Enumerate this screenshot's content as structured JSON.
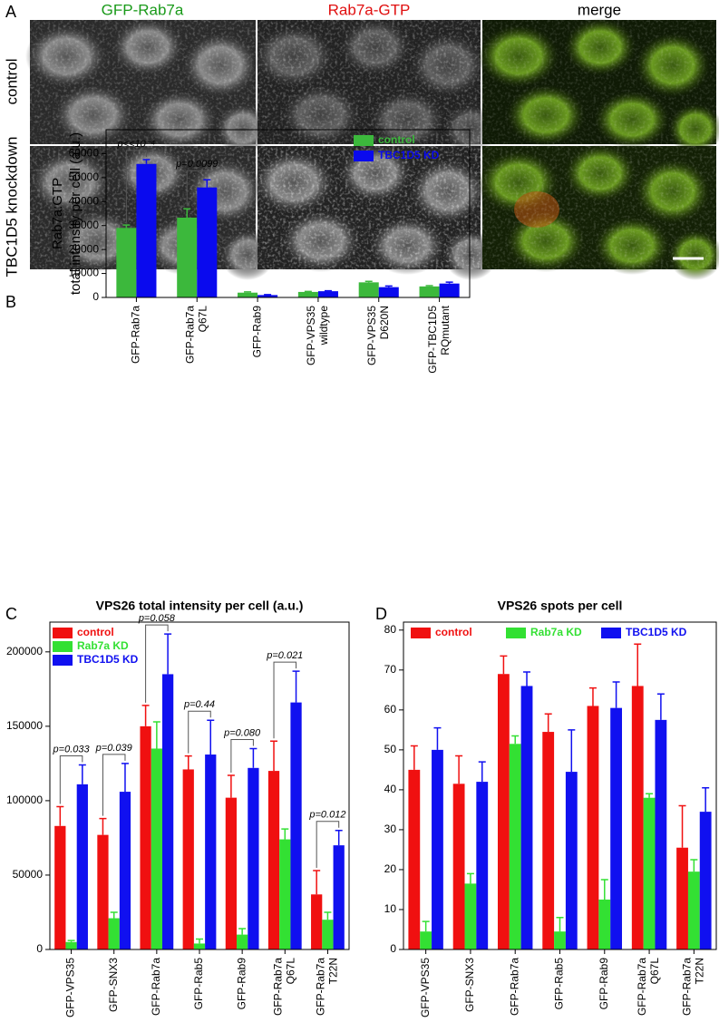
{
  "panel_a": {
    "letter": "A",
    "columns": [
      "GFP-Rab7a",
      "Rab7a-GTP",
      "merge"
    ],
    "rows": [
      "control",
      "TBC1D5 knockdown"
    ]
  },
  "chart_data": [
    {
      "type": "bar",
      "panel": "B",
      "ylabel": [
        "Rab7a:GTP",
        "total intensity per cell (a.u.)"
      ],
      "categories": [
        [
          "GFP-Rab7a"
        ],
        [
          "GFP-Rab7a",
          "Q67L"
        ],
        [
          "GFP-Rab9"
        ],
        [
          "GFP-VPS35",
          "wildtype"
        ],
        [
          "GFP-VPS35",
          "D620N"
        ],
        [
          "GFP-TBC1D5",
          "RQmutant"
        ]
      ],
      "series": [
        {
          "name": "control",
          "color": "#3cb83c",
          "values": [
            29000,
            33300,
            2000,
            2300,
            6300,
            4600
          ],
          "errors": [
            1200,
            3700,
            300,
            200,
            400,
            300
          ]
        },
        {
          "name": "TBC1D5 KD",
          "color": "#0a0aee",
          "values": [
            55700,
            45900,
            1000,
            2600,
            4300,
            5800
          ],
          "errors": [
            1800,
            3200,
            200,
            200,
            500,
            600
          ]
        }
      ],
      "annotations": [
        "p<<10⁻⁴",
        "p=0.0099",
        null,
        null,
        null,
        null
      ],
      "ylim": [
        0,
        70000
      ],
      "yticks": [
        0,
        10000,
        20000,
        30000,
        40000,
        50000,
        60000
      ],
      "legend": "upper right"
    },
    {
      "type": "bar",
      "panel": "C",
      "title": "VPS26 total intensity per cell (a.u.)",
      "categories": [
        [
          "GFP-VPS35"
        ],
        [
          "GFP-SNX3"
        ],
        [
          "GFP-Rab7a"
        ],
        [
          "GFP-Rab5"
        ],
        [
          "GFP-Rab9"
        ],
        [
          "GFP-Rab7a",
          "Q67L"
        ],
        [
          "GFP-Rab7a",
          "T22N"
        ]
      ],
      "series": [
        {
          "name": "control",
          "color": "#f01010",
          "values": [
            83000,
            77000,
            150000,
            121000,
            102000,
            120000,
            37000
          ],
          "errors": [
            13000,
            11000,
            14000,
            9000,
            15000,
            20000,
            16000
          ]
        },
        {
          "name": "Rab7a KD",
          "color": "#33e033",
          "values": [
            5000,
            21000,
            135000,
            4000,
            10000,
            74000,
            20000
          ],
          "errors": [
            1000,
            4000,
            18000,
            3000,
            4000,
            7000,
            5000
          ]
        },
        {
          "name": "TBC1D5 KD",
          "color": "#1010f0",
          "values": [
            111000,
            106000,
            185000,
            131000,
            122000,
            166000,
            70000
          ],
          "errors": [
            13000,
            19000,
            27000,
            23000,
            13000,
            21000,
            10000
          ]
        }
      ],
      "annotations": [
        "p=0.033",
        "p=0.039",
        "p=0.058",
        "p=0.44",
        "p=0.080",
        "p=0.021",
        "p=0.012"
      ],
      "ylim": [
        0,
        220000
      ],
      "yticks": [
        0,
        50000,
        100000,
        150000,
        200000
      ],
      "legend": "upper left"
    },
    {
      "type": "bar",
      "panel": "D",
      "title": "VPS26 spots per cell",
      "categories": [
        [
          "GFP-VPS35"
        ],
        [
          "GFP-SNX3"
        ],
        [
          "GFP-Rab7a"
        ],
        [
          "GFP-Rab5"
        ],
        [
          "GFP-Rab9"
        ],
        [
          "GFP-Rab7a",
          "Q67L"
        ],
        [
          "GFP-Rab7a",
          "T22N"
        ]
      ],
      "series": [
        {
          "name": "control",
          "color": "#f01010",
          "values": [
            45,
            41.5,
            69,
            54.5,
            61,
            66,
            25.5
          ],
          "errors": [
            6,
            7,
            4.5,
            4.5,
            4.5,
            10.5,
            10.5
          ]
        },
        {
          "name": "Rab7a KD",
          "color": "#33e033",
          "values": [
            4.5,
            16.5,
            51.5,
            4.5,
            12.5,
            38,
            19.5
          ],
          "errors": [
            2.5,
            2.5,
            2,
            3.5,
            5,
            1,
            3
          ]
        },
        {
          "name": "TBC1D5 KD",
          "color": "#1010f0",
          "values": [
            50,
            42,
            66,
            44.5,
            60.5,
            57.5,
            34.5
          ],
          "errors": [
            5.5,
            5,
            3.5,
            10.5,
            6.5,
            6.5,
            6
          ]
        }
      ],
      "ylim": [
        0,
        82
      ],
      "yticks": [
        0,
        10,
        20,
        30,
        40,
        50,
        60,
        70,
        80
      ],
      "legend": "top"
    }
  ]
}
